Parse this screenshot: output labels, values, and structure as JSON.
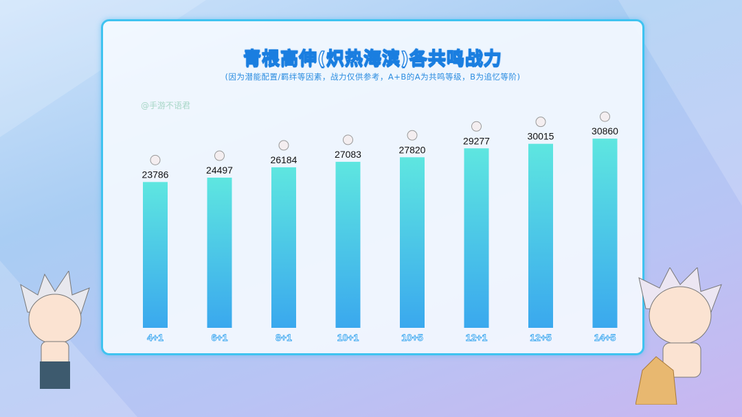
{
  "chart_data": {
    "type": "bar",
    "title": "青根高伸(炽热海滨)各共鸣战力",
    "subtitle": "(因为潜能配置/羁绊等因素，战力仅供参考，A+B的A为共鸣等级，B为追忆等阶)",
    "categories": [
      "4+1",
      "6+1",
      "8+1",
      "10+1",
      "10+5",
      "12+1",
      "12+5",
      "14+5"
    ],
    "values": [
      23786,
      24497,
      26184,
      27083,
      27820,
      29277,
      30015,
      30860
    ],
    "xlabel": "",
    "ylabel": "",
    "ylim": [
      0,
      33000
    ],
    "grid": false,
    "bar_gradient": [
      "#5ee6e0",
      "#3aa8ee"
    ],
    "category_label_color": "#3fa8f0"
  },
  "watermark": "@手游不语君",
  "colors": {
    "panel_border": "#3fc3f0",
    "title_stroke": "#1a7ee0"
  }
}
